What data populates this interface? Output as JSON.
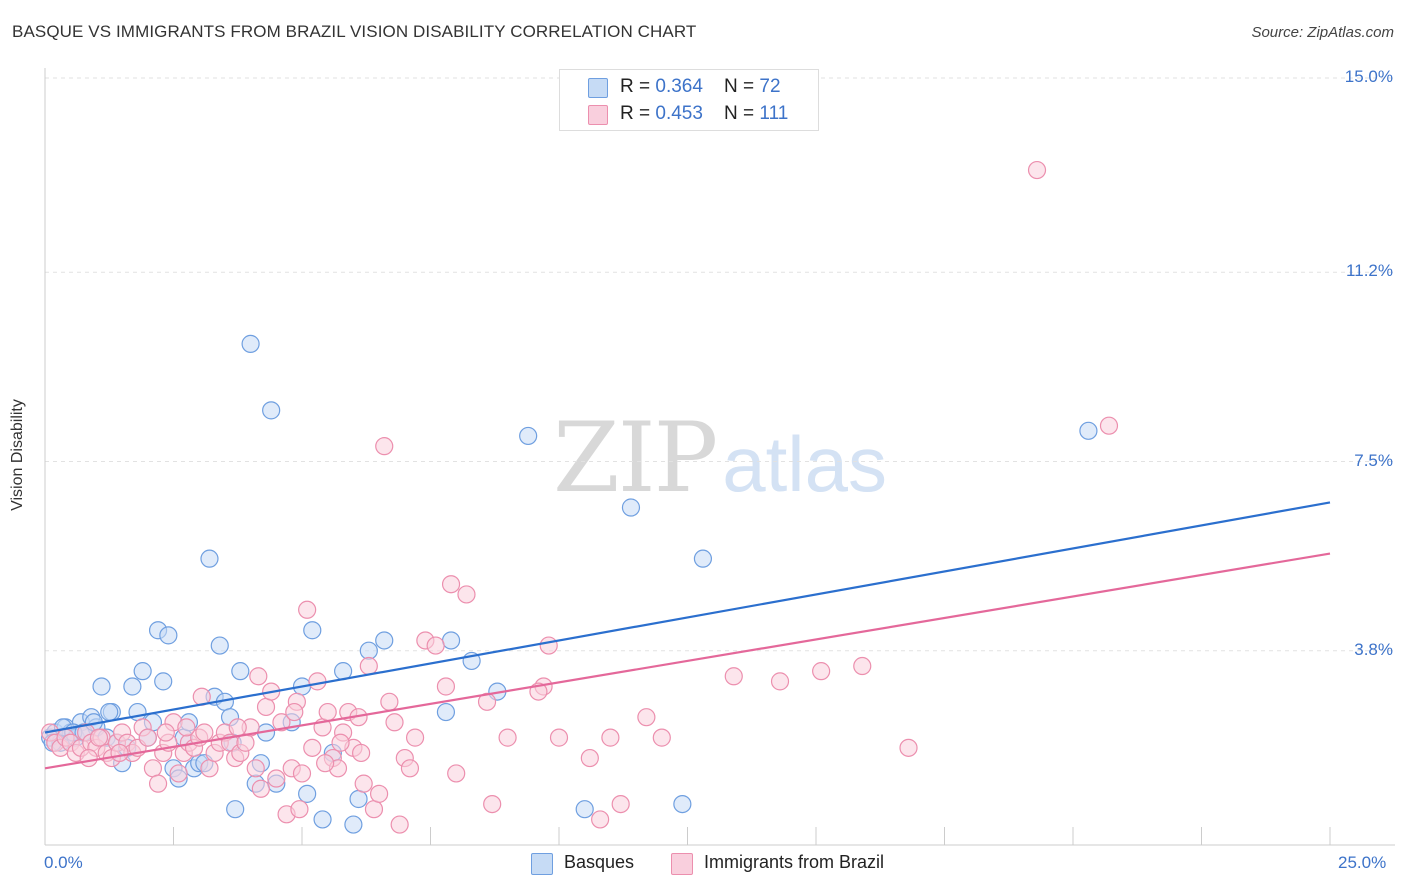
{
  "title": "BASQUE VS IMMIGRANTS FROM BRAZIL VISION DISABILITY CORRELATION CHART",
  "source": "Source: ZipAtlas.com",
  "watermark": {
    "zip": "ZIP",
    "atlas": "atlas"
  },
  "legend_top": [
    {
      "r_label": "R = ",
      "r_value": "0.364",
      "n_label": "N = ",
      "n_value": "72"
    },
    {
      "r_label": "R = ",
      "r_value": "0.453",
      "n_label": "N = ",
      "n_value": "111"
    }
  ],
  "chart_data": {
    "type": "scatter",
    "ylabel": "Vision Disability",
    "xlim": [
      0,
      25
    ],
    "ylim": [
      0,
      15
    ],
    "x_tick_labels": [
      "0.0%",
      "25.0%"
    ],
    "y_ticks": [
      {
        "value": 3.8,
        "label": "3.8%"
      },
      {
        "value": 7.5,
        "label": "7.5%"
      },
      {
        "value": 11.2,
        "label": "11.2%"
      },
      {
        "value": 15.0,
        "label": "15.0%"
      }
    ],
    "legend": [
      "Basques",
      "Immigrants from Brazil"
    ],
    "series": [
      {
        "name": "Basques",
        "color": "#6f9fe0",
        "fill": "#c6dbf5",
        "line_color": "#2b6fce",
        "trend": {
          "x0": 0,
          "y0": 2.2,
          "x1": 25,
          "y1": 6.7
        },
        "points": [
          [
            0.1,
            2.1
          ],
          [
            0.2,
            2.2
          ],
          [
            0.3,
            2.0
          ],
          [
            0.4,
            2.3
          ],
          [
            0.5,
            2.2
          ],
          [
            0.6,
            2.1
          ],
          [
            0.7,
            2.4
          ],
          [
            0.8,
            2.2
          ],
          [
            0.9,
            2.5
          ],
          [
            1.0,
            2.3
          ],
          [
            1.1,
            3.1
          ],
          [
            1.2,
            2.1
          ],
          [
            1.3,
            2.6
          ],
          [
            1.4,
            2.0
          ],
          [
            1.5,
            1.6
          ],
          [
            1.6,
            1.9
          ],
          [
            1.7,
            3.1
          ],
          [
            1.8,
            2.6
          ],
          [
            1.9,
            3.4
          ],
          [
            2.0,
            2.1
          ],
          [
            2.1,
            2.4
          ],
          [
            2.2,
            4.2
          ],
          [
            2.3,
            3.2
          ],
          [
            2.4,
            4.1
          ],
          [
            2.5,
            1.5
          ],
          [
            2.6,
            1.3
          ],
          [
            2.7,
            2.1
          ],
          [
            2.8,
            2.4
          ],
          [
            2.9,
            1.5
          ],
          [
            3.0,
            1.6
          ],
          [
            3.1,
            1.6
          ],
          [
            3.2,
            5.6
          ],
          [
            3.3,
            2.9
          ],
          [
            3.4,
            3.9
          ],
          [
            3.5,
            2.8
          ],
          [
            3.6,
            2.5
          ],
          [
            3.7,
            0.7
          ],
          [
            3.8,
            3.4
          ],
          [
            4.0,
            9.8
          ],
          [
            4.1,
            1.2
          ],
          [
            4.2,
            1.6
          ],
          [
            4.3,
            2.2
          ],
          [
            4.4,
            8.5
          ],
          [
            4.5,
            1.2
          ],
          [
            4.8,
            2.4
          ],
          [
            5.0,
            3.1
          ],
          [
            5.1,
            1.0
          ],
          [
            5.2,
            4.2
          ],
          [
            5.4,
            0.5
          ],
          [
            5.6,
            1.8
          ],
          [
            5.8,
            3.4
          ],
          [
            6.0,
            0.4
          ],
          [
            6.1,
            0.9
          ],
          [
            6.3,
            3.8
          ],
          [
            6.6,
            4.0
          ],
          [
            7.8,
            2.6
          ],
          [
            7.9,
            4.0
          ],
          [
            8.3,
            3.6
          ],
          [
            8.8,
            3.0
          ],
          [
            9.4,
            8.0
          ],
          [
            10.5,
            0.7
          ],
          [
            11.4,
            6.6
          ],
          [
            12.4,
            0.8
          ],
          [
            12.8,
            5.6
          ],
          [
            20.3,
            8.1
          ],
          [
            0.15,
            2.0
          ],
          [
            0.35,
            2.3
          ],
          [
            0.55,
            2.2
          ],
          [
            0.75,
            2.2
          ],
          [
            0.95,
            2.4
          ],
          [
            1.25,
            2.6
          ],
          [
            3.65,
            2.0
          ]
        ]
      },
      {
        "name": "Immigrants from Brazil",
        "color": "#ec8fae",
        "fill": "#f9cfdd",
        "line_color": "#e4689a",
        "trend": {
          "x0": 0,
          "y0": 1.5,
          "x1": 25,
          "y1": 5.7
        },
        "points": [
          [
            0.1,
            2.2
          ],
          [
            0.2,
            2.0
          ],
          [
            0.3,
            1.9
          ],
          [
            0.4,
            2.1
          ],
          [
            0.5,
            2.0
          ],
          [
            0.6,
            1.8
          ],
          [
            0.7,
            1.9
          ],
          [
            0.8,
            2.2
          ],
          [
            0.9,
            2.0
          ],
          [
            1.0,
            1.9
          ],
          [
            1.1,
            2.1
          ],
          [
            1.2,
            1.8
          ],
          [
            1.3,
            1.7
          ],
          [
            1.4,
            2.0
          ],
          [
            1.5,
            2.2
          ],
          [
            1.6,
            2.0
          ],
          [
            1.7,
            1.8
          ],
          [
            1.8,
            1.9
          ],
          [
            1.9,
            2.3
          ],
          [
            2.0,
            2.1
          ],
          [
            2.1,
            1.5
          ],
          [
            2.2,
            1.2
          ],
          [
            2.3,
            1.8
          ],
          [
            2.4,
            2.0
          ],
          [
            2.5,
            2.4
          ],
          [
            2.6,
            1.4
          ],
          [
            2.7,
            1.8
          ],
          [
            2.8,
            2.0
          ],
          [
            2.9,
            1.9
          ],
          [
            3.0,
            2.1
          ],
          [
            3.1,
            2.2
          ],
          [
            3.2,
            1.5
          ],
          [
            3.3,
            1.8
          ],
          [
            3.4,
            2.0
          ],
          [
            3.5,
            2.2
          ],
          [
            3.6,
            2.0
          ],
          [
            3.7,
            1.7
          ],
          [
            3.8,
            1.8
          ],
          [
            3.9,
            2.0
          ],
          [
            4.0,
            2.3
          ],
          [
            4.1,
            1.5
          ],
          [
            4.2,
            1.1
          ],
          [
            4.3,
            2.7
          ],
          [
            4.4,
            3.0
          ],
          [
            4.5,
            1.3
          ],
          [
            4.6,
            2.4
          ],
          [
            4.7,
            0.6
          ],
          [
            4.8,
            1.5
          ],
          [
            4.9,
            2.8
          ],
          [
            5.0,
            1.4
          ],
          [
            5.1,
            4.6
          ],
          [
            5.2,
            1.9
          ],
          [
            5.3,
            3.2
          ],
          [
            5.4,
            2.3
          ],
          [
            5.5,
            2.6
          ],
          [
            5.6,
            1.7
          ],
          [
            5.7,
            1.5
          ],
          [
            5.8,
            2.2
          ],
          [
            5.9,
            2.6
          ],
          [
            6.0,
            1.9
          ],
          [
            6.1,
            2.5
          ],
          [
            6.2,
            1.2
          ],
          [
            6.3,
            3.5
          ],
          [
            6.4,
            0.7
          ],
          [
            6.5,
            1.0
          ],
          [
            6.6,
            7.8
          ],
          [
            6.7,
            2.8
          ],
          [
            6.8,
            2.4
          ],
          [
            6.9,
            0.4
          ],
          [
            7.0,
            1.7
          ],
          [
            7.1,
            1.5
          ],
          [
            7.2,
            2.1
          ],
          [
            7.4,
            4.0
          ],
          [
            7.6,
            3.9
          ],
          [
            7.8,
            3.1
          ],
          [
            7.9,
            5.1
          ],
          [
            8.0,
            1.4
          ],
          [
            8.2,
            4.9
          ],
          [
            8.6,
            2.8
          ],
          [
            8.7,
            0.8
          ],
          [
            9.0,
            2.1
          ],
          [
            9.7,
            3.1
          ],
          [
            9.8,
            3.9
          ],
          [
            10.0,
            2.1
          ],
          [
            10.6,
            1.7
          ],
          [
            10.8,
            0.5
          ],
          [
            11.0,
            2.1
          ],
          [
            11.2,
            0.8
          ],
          [
            11.7,
            2.5
          ],
          [
            12.0,
            2.1
          ],
          [
            13.4,
            3.3
          ],
          [
            14.3,
            3.2
          ],
          [
            15.1,
            3.4
          ],
          [
            15.9,
            3.5
          ],
          [
            16.8,
            1.9
          ],
          [
            19.3,
            13.2
          ],
          [
            20.7,
            8.2
          ],
          [
            3.05,
            2.9
          ],
          [
            3.75,
            2.3
          ],
          [
            4.15,
            3.3
          ],
          [
            4.95,
            0.7
          ],
          [
            5.45,
            1.6
          ],
          [
            6.15,
            1.8
          ],
          [
            2.35,
            2.2
          ],
          [
            1.45,
            1.8
          ],
          [
            0.85,
            1.7
          ],
          [
            9.6,
            3.0
          ],
          [
            4.85,
            2.6
          ],
          [
            5.75,
            2.0
          ],
          [
            2.75,
            2.3
          ],
          [
            1.05,
            2.1
          ]
        ]
      }
    ]
  }
}
